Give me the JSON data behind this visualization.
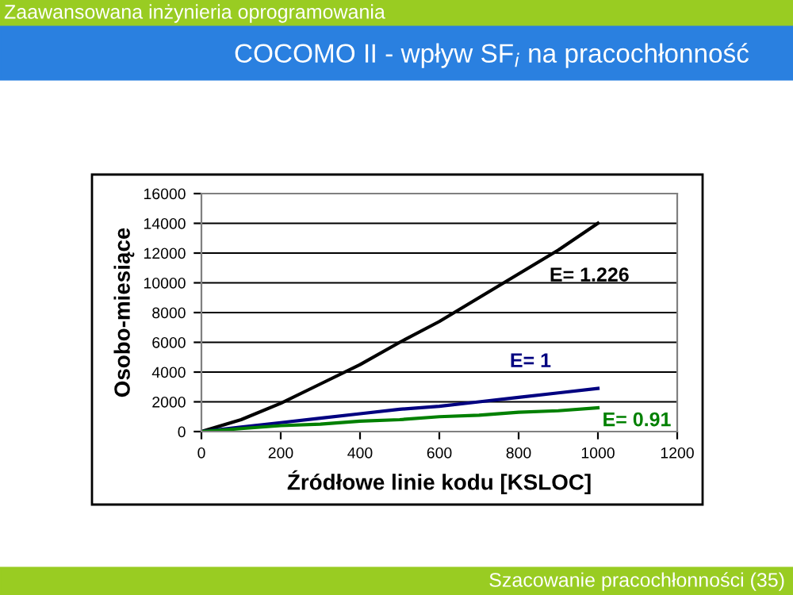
{
  "chart_data": {
    "type": "line",
    "title": "COCOMO II - wpływ SF$_{i}$ na pracochłonność",
    "annotations": [
      "Zaawansowana inżynieria oprogramowania",
      "Szacowanie pracochłonności (35)"
    ],
    "xlabel": "Źródłowe linie kodu [KSLOC]",
    "ylabel": "Osobo-miesiące",
    "x": [
      0,
      100,
      200,
      300,
      400,
      500,
      600,
      700,
      800,
      900,
      1000
    ],
    "series": [
      {
        "name": "E= 1.226",
        "color": "#000000",
        "values": [
          0,
          800,
          1900,
          3200,
          4500,
          6000,
          7400,
          9000,
          10600,
          12200,
          14000
        ]
      },
      {
        "name": "E= 1",
        "color": "#000080",
        "values": [
          0,
          300,
          600,
          900,
          1200,
          1500,
          1700,
          2000,
          2300,
          2600,
          2900
        ]
      },
      {
        "name": "E= 0.91",
        "color": "#008000",
        "values": [
          0,
          200,
          400,
          500,
          700,
          800,
          1000,
          1100,
          1300,
          1400,
          1600
        ]
      }
    ],
    "xlim": [
      0,
      1200
    ],
    "xticks": [
      0,
      200,
      400,
      600,
      800,
      1000,
      1200
    ],
    "ylim": [
      0,
      16000
    ],
    "yticks": [
      0,
      2000,
      4000,
      6000,
      8000,
      10000,
      12000,
      14000,
      16000
    ],
    "grid": "y",
    "legend": false,
    "marker": "none",
    "line_style": "solid"
  }
}
